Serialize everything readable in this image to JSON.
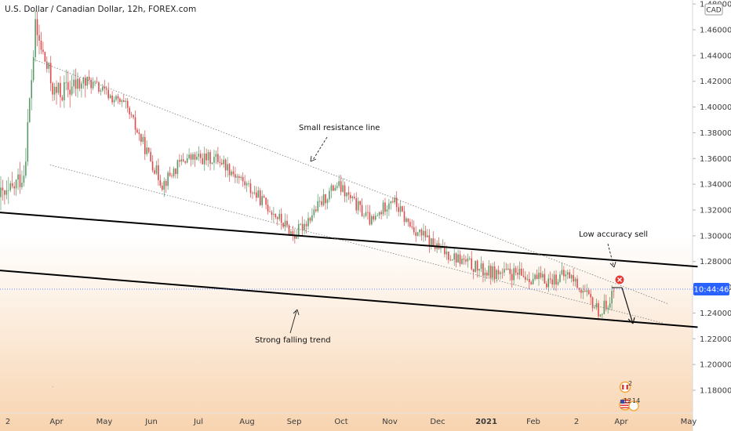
{
  "title": "U.S. Dollar / Canadian Dollar, 12h, FOREX.com",
  "currency_badge": "CAD",
  "price_label": "10:44:46",
  "annotations": {
    "small_resistance": "Small resistance line",
    "low_accuracy": "Low accuracy sell",
    "strong_trend": "Strong falling trend"
  },
  "event_badges": {
    "top_count": "2",
    "left_count": "12",
    "right_count": "14"
  },
  "colors": {
    "background_top": "#ffffff",
    "background_bottom": "#f8d4b0",
    "up_candle": "#5b9a68",
    "down_candle": "#e04a4a",
    "trendline": "#000000",
    "price_badge": "#2962ff"
  },
  "chart_data": {
    "type": "candlestick",
    "title": "U.S. Dollar / Canadian Dollar, 12h, FOREX.com",
    "x_tick_labels": [
      "2",
      "Apr",
      "May",
      "Jun",
      "Jul",
      "Aug",
      "Sep",
      "Oct",
      "Nov",
      "Dec",
      "2021",
      "Feb",
      "2",
      "Apr",
      "May"
    ],
    "y_tick_labels": [
      "1.48000",
      "1.46000",
      "1.44000",
      "1.42000",
      "1.40000",
      "1.38000",
      "1.36000",
      "1.34000",
      "1.32000",
      "1.30000",
      "1.28000",
      "1.26000",
      "1.24000",
      "1.22000",
      "1.20000",
      "1.18000"
    ],
    "ylim": [
      1.162,
      1.482
    ],
    "approx_close_path": [
      {
        "date": "2020-03-02",
        "close": 1.33
      },
      {
        "date": "2020-03-12",
        "close": 1.35
      },
      {
        "date": "2020-03-19",
        "close": 1.46
      },
      {
        "date": "2020-03-31",
        "close": 1.41
      },
      {
        "date": "2020-04-21",
        "close": 1.42
      },
      {
        "date": "2020-05-15",
        "close": 1.4
      },
      {
        "date": "2020-06-08",
        "close": 1.34
      },
      {
        "date": "2020-06-22",
        "close": 1.36
      },
      {
        "date": "2020-07-14",
        "close": 1.36
      },
      {
        "date": "2020-07-31",
        "close": 1.34
      },
      {
        "date": "2020-08-17",
        "close": 1.32
      },
      {
        "date": "2020-09-01",
        "close": 1.3
      },
      {
        "date": "2020-09-28",
        "close": 1.34
      },
      {
        "date": "2020-10-21",
        "close": 1.31
      },
      {
        "date": "2020-11-02",
        "close": 1.33
      },
      {
        "date": "2020-11-12",
        "close": 1.31
      },
      {
        "date": "2020-12-01",
        "close": 1.29
      },
      {
        "date": "2020-12-31",
        "close": 1.272
      },
      {
        "date": "2021-01-20",
        "close": 1.27
      },
      {
        "date": "2021-02-10",
        "close": 1.265
      },
      {
        "date": "2021-02-25",
        "close": 1.27
      },
      {
        "date": "2021-03-18",
        "close": 1.24
      },
      {
        "date": "2021-03-28",
        "close": 1.258
      }
    ],
    "trendlines": [
      {
        "name": "strong-falling-trend-upper",
        "start": {
          "date": "2020-02-17",
          "price": 1.319
        },
        "end": {
          "date": "2021-05-05",
          "price": 1.276
        }
      },
      {
        "name": "strong-falling-trend-lower",
        "start": {
          "date": "2020-02-17",
          "price": 1.274
        },
        "end": {
          "date": "2021-05-05",
          "price": 1.229
        }
      },
      {
        "name": "small-resistance-line",
        "start": {
          "date": "2020-03-18",
          "price": 1.437
        },
        "end": {
          "date": "2021-04-22",
          "price": 1.247
        }
      },
      {
        "name": "channel-lower-line",
        "start": {
          "date": "2020-03-28",
          "price": 1.355
        },
        "end": {
          "date": "2021-04-20",
          "price": 1.232
        }
      }
    ],
    "current_price_line": {
      "label": "10:44:46",
      "price": 1.2585
    },
    "grid": false,
    "legend": "none"
  }
}
